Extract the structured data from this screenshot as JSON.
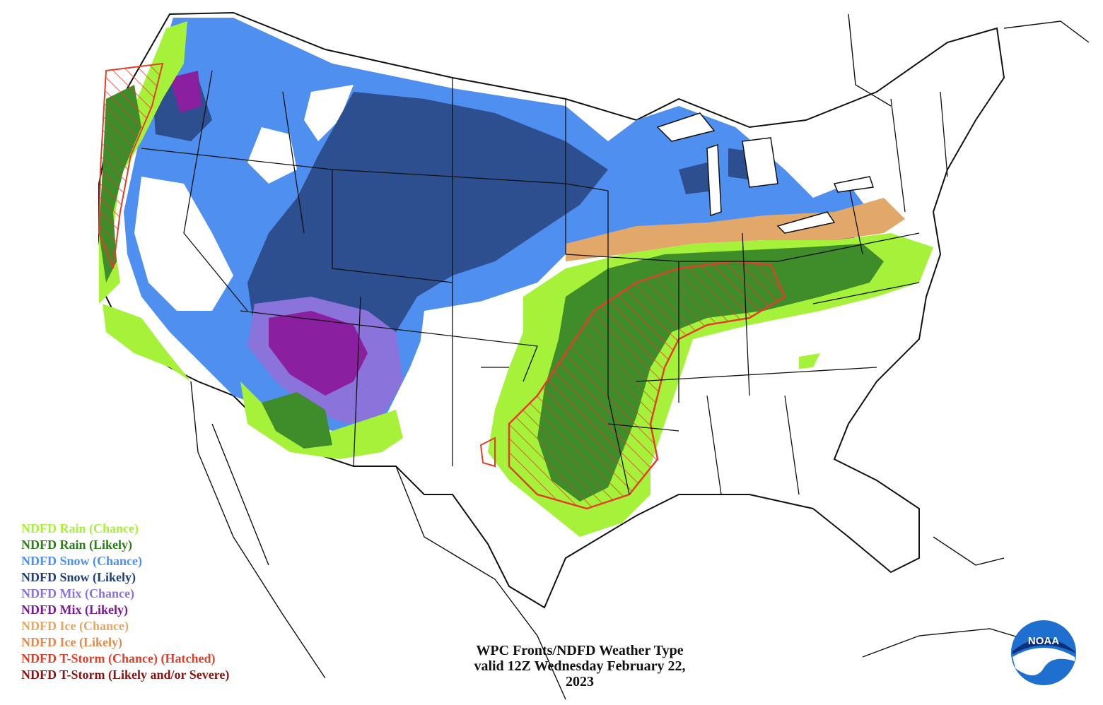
{
  "map": {
    "caption_line1": "WPC Fronts/NDFD Weather Type",
    "caption_line2": "valid 12Z Wednesday February 22,",
    "caption_line3": "2023",
    "logo_text": "NOAA"
  },
  "colors": {
    "rain_chance": "#a6f23a",
    "rain_likely": "#3e8c2a",
    "snow_chance": "#4f8ff0",
    "snow_likely": "#2d4f8f",
    "mix_chance": "#8a74dc",
    "mix_likely": "#8a1fa0",
    "ice_chance": "#e2a86a",
    "ice_likely": "#e08a4e",
    "tstorm_chance": "#e0402a",
    "tstorm_likely": "#8a1414"
  },
  "legend": {
    "items": [
      {
        "label": "NDFD Rain (Chance)",
        "color": "#a6f23a"
      },
      {
        "label": "NDFD Rain (Likely)",
        "color": "#2e7d1c"
      },
      {
        "label": "NDFD Snow (Chance)",
        "color": "#4f8ff0"
      },
      {
        "label": "NDFD Snow (Likely)",
        "color": "#1f3f7a"
      },
      {
        "label": "NDFD Mix (Chance)",
        "color": "#8a74dc"
      },
      {
        "label": "NDFD Mix (Likely)",
        "color": "#7a1a96"
      },
      {
        "label": "NDFD Ice (Chance)",
        "color": "#e2a86a"
      },
      {
        "label": "NDFD Ice (Likely)",
        "color": "#e08a4e"
      },
      {
        "label": "NDFD T-Storm (Chance) (Hatched)",
        "color": "#e0402a"
      },
      {
        "label": "NDFD T-Storm (Likely and/or Severe)",
        "color": "#8a1414"
      }
    ]
  }
}
